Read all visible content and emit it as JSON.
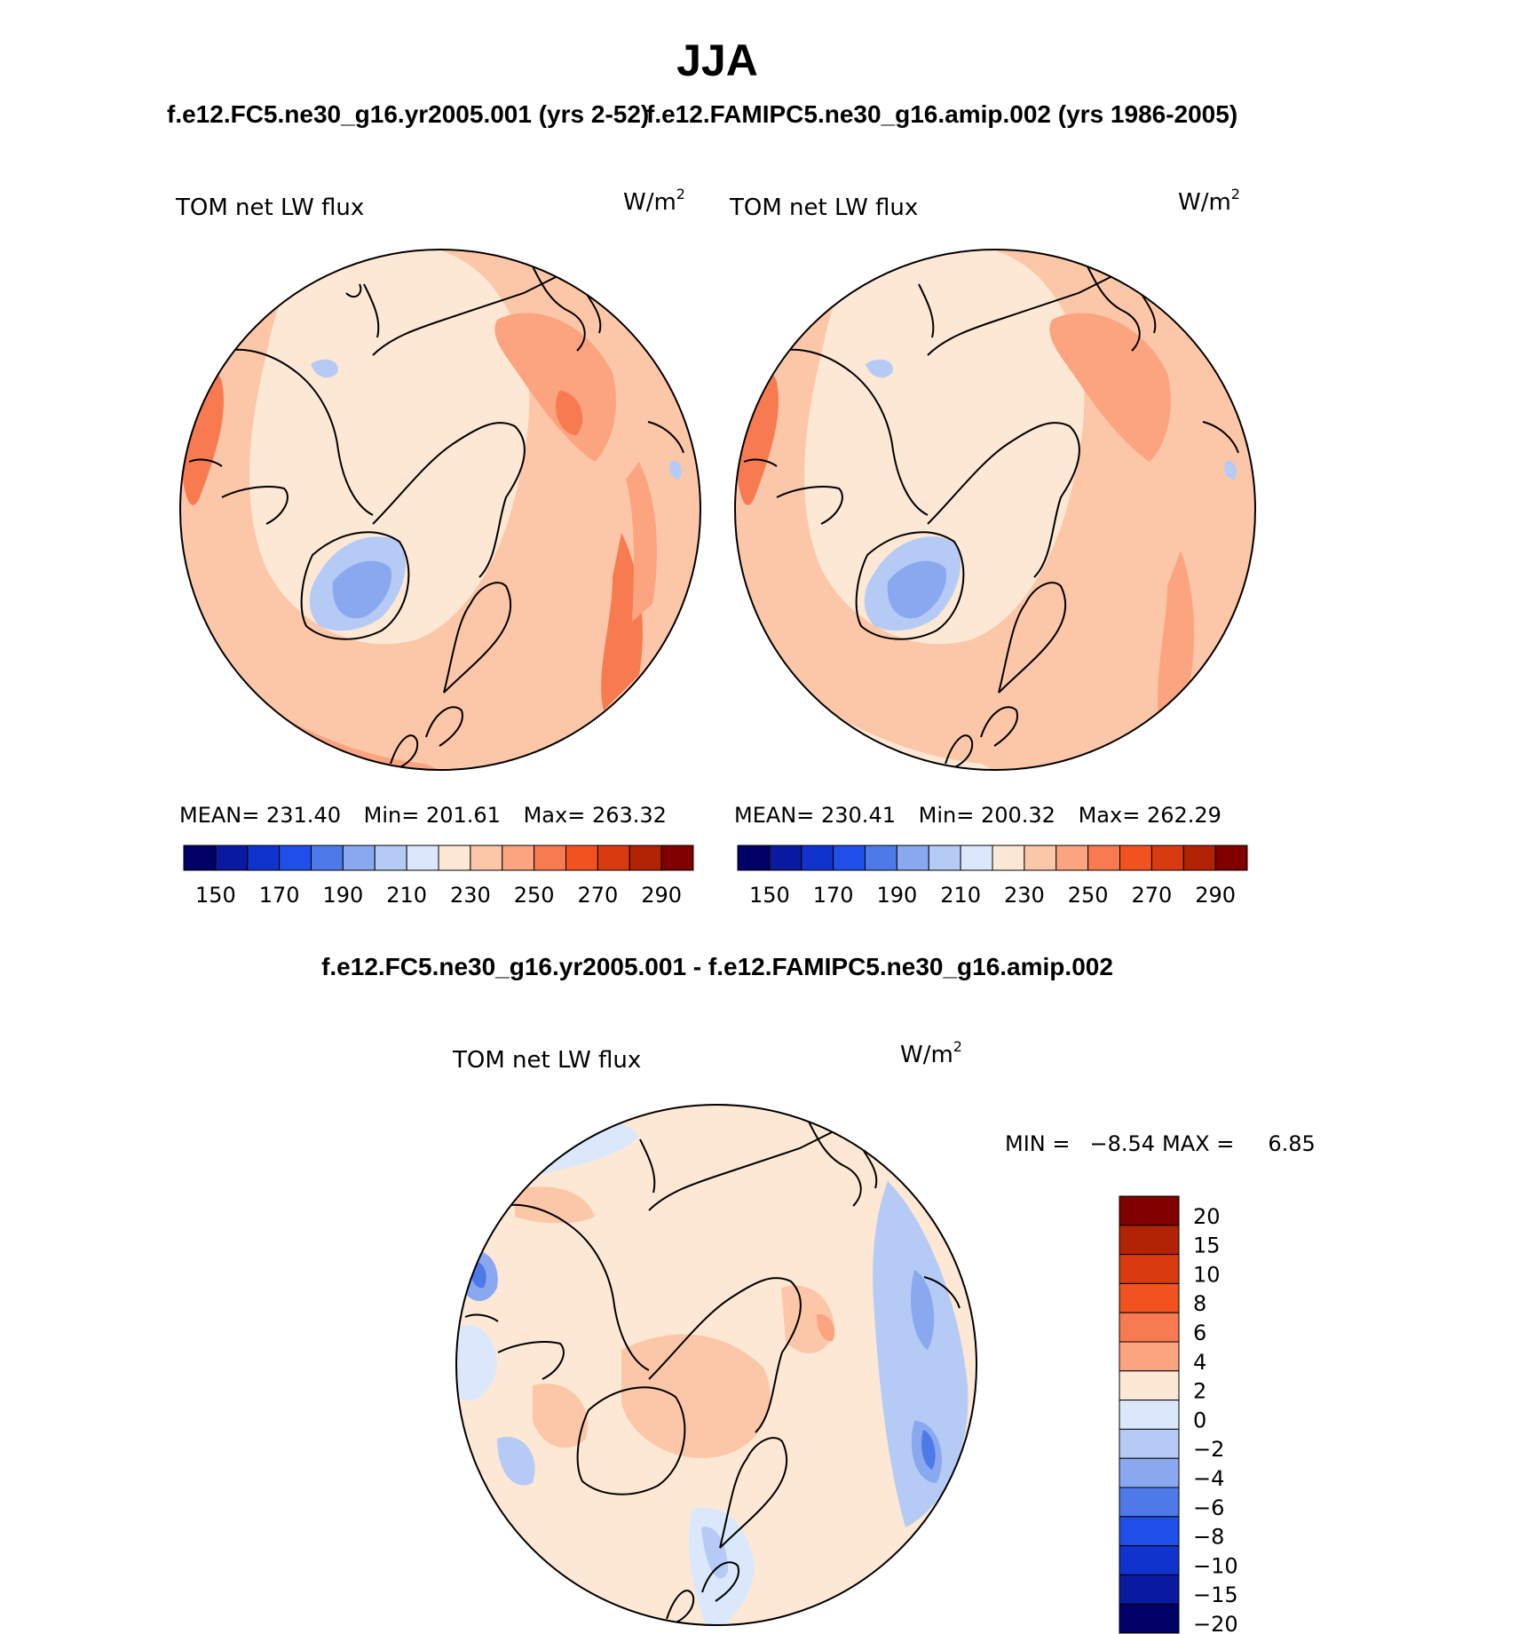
{
  "season": "JJA",
  "panels": [
    {
      "id": "case",
      "title": "f.e12.FC5.ne30_g16.yr2005.001 (yrs 2-52)",
      "variable": "TOM net LW flux",
      "units": "W/m",
      "units_exp": "2",
      "stats": {
        "mean_label": "MEAN=",
        "mean": "231.40",
        "min_label": "Min=",
        "min": "201.61",
        "max_label": "Max=",
        "max": "263.32"
      }
    },
    {
      "id": "control",
      "title": "f.e12.FAMIPC5.ne30_g16.amip.002 (yrs 1986-2005)",
      "variable": "TOM net LW flux",
      "units": "W/m",
      "units_exp": "2",
      "stats": {
        "mean_label": "MEAN=",
        "mean": "230.41",
        "min_label": "Min=",
        "min": "200.32",
        "max_label": "Max=",
        "max": "262.29"
      }
    }
  ],
  "abs_colorbar": {
    "colors": [
      "#000066",
      "#0a1aa0",
      "#0f33cc",
      "#1f4fe8",
      "#4d7ae8",
      "#8aa8f0",
      "#b5cbf5",
      "#dbe8fb",
      "#fde8d6",
      "#fcc7a8",
      "#fba47f",
      "#f77a50",
      "#f2521f",
      "#d93a10",
      "#b22205",
      "#800000"
    ],
    "labels": [
      "150",
      "170",
      "190",
      "210",
      "230",
      "250",
      "270",
      "290"
    ]
  },
  "diff_panel": {
    "title": "f.e12.FC5.ne30_g16.yr2005.001 - f.e12.FAMIPC5.ne30_g16.amip.002",
    "variable": "TOM net LW flux",
    "units": "W/m",
    "units_exp": "2",
    "min_label": "MIN =",
    "min": "−8.54",
    "max_label": "MAX =",
    "max": "6.85"
  },
  "diff_colorbar": {
    "colors": [
      "#800000",
      "#b22205",
      "#d93a10",
      "#f2521f",
      "#f77a50",
      "#fba47f",
      "#fde8d6",
      "#dbe8fb",
      "#b5cbf5",
      "#8aa8f0",
      "#4d7ae8",
      "#1f4fe8",
      "#0f33cc",
      "#0a1aa0",
      "#000066"
    ],
    "labels": [
      "20",
      "15",
      "10",
      "8",
      "6",
      "4",
      "2",
      "0",
      "−2",
      "−4",
      "−6",
      "−8",
      "−10",
      "−15",
      "−20"
    ]
  },
  "chart_data": [
    {
      "type": "heatmap",
      "title": "f.e12.FC5.ne30_g16.yr2005.001 (yrs 2-52)",
      "variable": "TOM net LW flux",
      "units": "W/m2",
      "season": "JJA",
      "mean": 231.4,
      "min": 201.61,
      "max": 263.32,
      "colorbar_levels": [
        150,
        160,
        170,
        180,
        190,
        200,
        210,
        220,
        230,
        240,
        250,
        260,
        270,
        280,
        290
      ]
    },
    {
      "type": "heatmap",
      "title": "f.e12.FAMIPC5.ne30_g16.amip.002 (yrs 1986-2005)",
      "variable": "TOM net LW flux",
      "units": "W/m2",
      "season": "JJA",
      "mean": 230.41,
      "min": 200.32,
      "max": 262.29,
      "colorbar_levels": [
        150,
        160,
        170,
        180,
        190,
        200,
        210,
        220,
        230,
        240,
        250,
        260,
        270,
        280,
        290
      ]
    },
    {
      "type": "heatmap",
      "title": "f.e12.FC5.ne30_g16.yr2005.001 - f.e12.FAMIPC5.ne30_g16.amip.002",
      "variable": "TOM net LW flux",
      "units": "W/m2",
      "season": "JJA",
      "min": -8.54,
      "max": 6.85,
      "colorbar_levels": [
        -20,
        -15,
        -10,
        -8,
        -6,
        -4,
        -2,
        0,
        2,
        4,
        6,
        8,
        10,
        15,
        20
      ]
    }
  ]
}
